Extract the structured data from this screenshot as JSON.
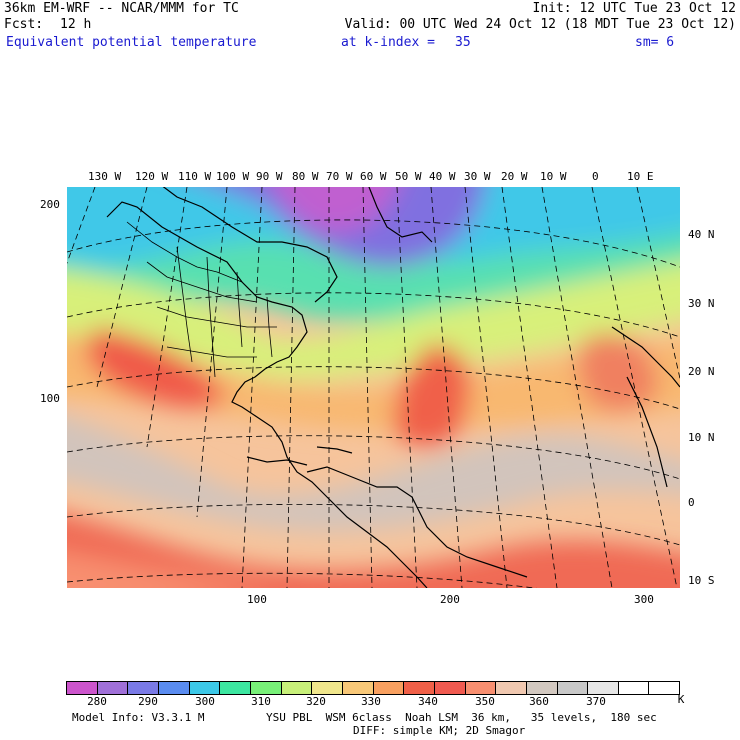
{
  "header": {
    "title": "36km EM-WRF -- NCAR/MMM for TC",
    "init": "Init: 12 UTC Tue 23 Oct 12",
    "fcst_label": "Fcst:",
    "fcst_value": "12 h",
    "valid": "Valid: 00 UTC Wed 24 Oct 12 (18 MDT Tue 23 Oct 12)",
    "field": "Equivalent potential temperature",
    "level": "at k-index =",
    "level_value": "35",
    "smoothing": "sm= 6"
  },
  "map": {
    "top_lon_labels": [
      "130 W",
      "120 W",
      "110 W",
      "100 W",
      "90 W",
      "80 W",
      "70 W",
      "60 W",
      "50 W",
      "40 W",
      "30 W",
      "20 W",
      "10 W",
      "0",
      "10 E"
    ],
    "right_lat_labels": [
      "40 N",
      "30 N",
      "20 N",
      "10 N",
      "0",
      "10 S"
    ],
    "left_grid_labels": [
      "200",
      "100"
    ],
    "bottom_grid_labels": [
      "100",
      "200",
      "300"
    ]
  },
  "colorbar": {
    "colors": [
      "#cc55cc",
      "#a070d8",
      "#7a7ae6",
      "#5a8cf0",
      "#3cc8e8",
      "#3ce6a0",
      "#78f078",
      "#c8f07a",
      "#f0e68c",
      "#f8c878",
      "#f8a060",
      "#f06048",
      "#f05a50",
      "#f88f70",
      "#f0c8b0",
      "#d2c8c0",
      "#c8c8c8",
      "#e6e6e6",
      "#ffffff",
      "#ffffff"
    ],
    "labels": [
      "280",
      "290",
      "300",
      "310",
      "320",
      "330",
      "340",
      "350",
      "360",
      "370"
    ],
    "unit": "K"
  },
  "footer": {
    "model_info": "Model Info: V3.3.1 M",
    "physics": "YSU PBL  WSM 6class  Noah LSM  36 km,   35 levels,  180 sec",
    "diffusion": "DIFF: simple KM; 2D Smagor"
  }
}
